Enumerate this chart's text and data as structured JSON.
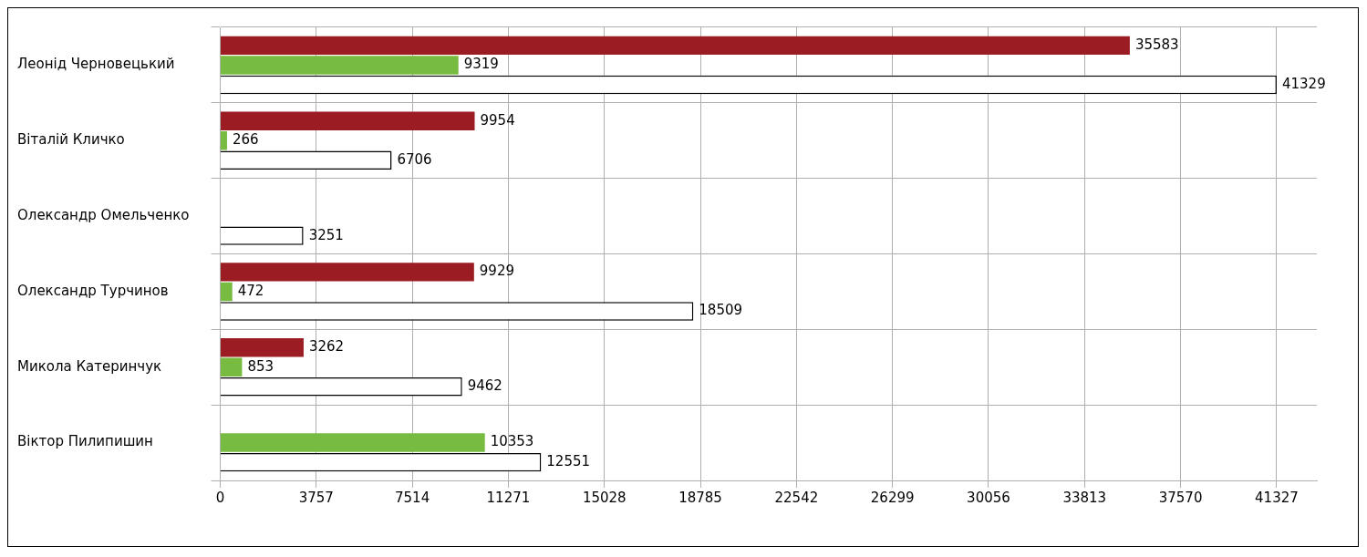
{
  "chart_data": {
    "type": "bar",
    "orientation": "horizontal",
    "categories": [
      "Леонід Черновецький",
      "Віталій Кличко",
      "Олександр Омельченко",
      "Олександр Турчинов",
      "Микола Катеринчук",
      "Віктор Пилипишин"
    ],
    "series": [
      {
        "color": "#9b1c22",
        "values": [
          35583,
          9954,
          null,
          9929,
          3262,
          null
        ]
      },
      {
        "color": "#77bc41",
        "values": [
          9319,
          266,
          null,
          472,
          853,
          10353
        ]
      },
      {
        "color": "#ffffff",
        "values": [
          41329,
          6706,
          3251,
          18509,
          9462,
          12551
        ]
      }
    ],
    "xlim": [
      0,
      42900
    ],
    "xticks": [
      0,
      3757,
      7514,
      11271,
      15028,
      18785,
      22542,
      26299,
      30056,
      33813,
      37570,
      41327
    ],
    "grid": true,
    "legend": false,
    "data_labels": true
  }
}
